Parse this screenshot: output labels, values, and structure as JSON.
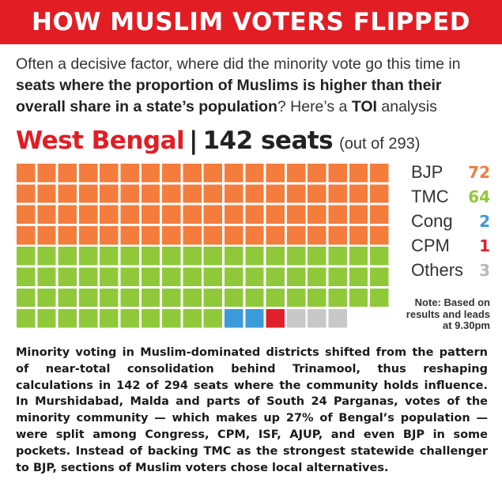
{
  "banner": {
    "title": "HOW MUSLIM VOTERS FLIPPED"
  },
  "intro": {
    "part1": "Often a decisive factor, where did the minority vote go this time in ",
    "bold1": "seats where the proportion of Muslims is higher than their overall share in a state’s population",
    "part2": "? Here’s a ",
    "bold2": "TOI",
    "part3": " analysis"
  },
  "heading": {
    "state": "West Bengal",
    "separator": "|",
    "seats": "142 seats",
    "out_of": "(out of 293)"
  },
  "note": "Note: Based on results and leads at 9.30pm",
  "body": "Minority voting in Muslim-dominated districts shifted from the pattern of near-total consolidation behind Trinamool, thus reshaping calculations in 142 of 294 seats where the community holds influence. In Murshidabad, Malda and parts of South 24 Parganas, votes of the minority community — which makes up 27% of Bengal’s population — were split among Congress, CPM, ISF, AJUP, and even BJP in some pockets. Instead of backing TMC as the strongest statewide challenger to BJP, sections of Muslim voters chose local alternatives.",
  "colors": {
    "brand_red": "#e31d24",
    "bjp": "#f47c3c",
    "tmc": "#8fc93a",
    "cong": "#3b9ad9",
    "cpm": "#e0202b",
    "others": "#c8c8c8"
  },
  "chart_data": {
    "type": "waffle",
    "title": "West Bengal | 142 seats (out of 293)",
    "total": 142,
    "columns": 18,
    "rows": 8,
    "series": [
      {
        "name": "BJP",
        "value": 72,
        "color": "#f47c3c",
        "label_color": "#f47c3c"
      },
      {
        "name": "TMC",
        "value": 64,
        "color": "#8fc93a",
        "label_color": "#8fc93a"
      },
      {
        "name": "Cong",
        "value": 2,
        "color": "#3b9ad9",
        "label_color": "#3b9ad9"
      },
      {
        "name": "CPM",
        "value": 1,
        "color": "#e0202b",
        "label_color": "#e0202b"
      },
      {
        "name": "Others",
        "value": 3,
        "color": "#c8c8c8",
        "label_color": "#b9b9b9"
      }
    ]
  }
}
